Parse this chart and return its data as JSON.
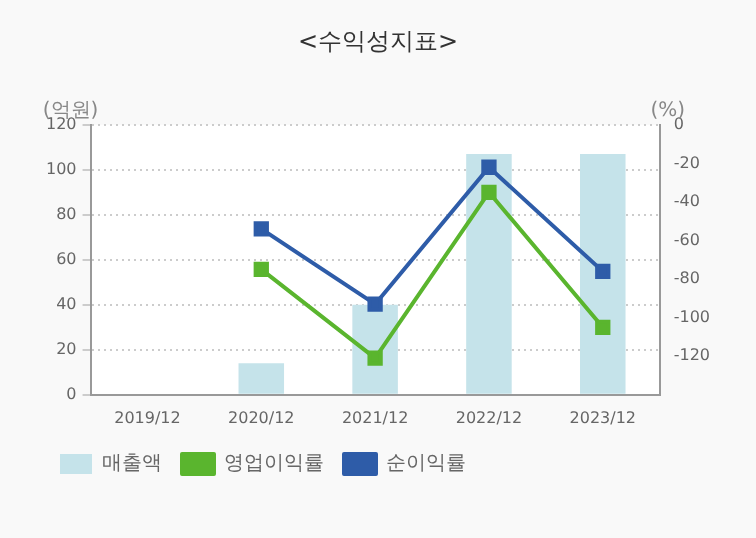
{
  "chart_data": {
    "type": "bar",
    "title": "<수익성지표>",
    "ylabel": "(억원)",
    "y2label": "(%)",
    "categories": [
      "2019/12",
      "2020/12",
      "2021/12",
      "2022/12",
      "2023/12"
    ],
    "series": [
      {
        "name": "매출액",
        "color": "#c5e3ea",
        "values": [
          null,
          14,
          40,
          107,
          107
        ]
      },
      {
        "name": "영업이익률",
        "type": "line",
        "axis": "y2",
        "color": "#5ab52e",
        "values": [
          null,
          -75,
          -121,
          -35,
          -105
        ]
      },
      {
        "name": "순이익률",
        "type": "line",
        "axis": "y2",
        "color": "#2e5ca8",
        "values": [
          null,
          -54,
          -93,
          -22,
          -76
        ]
      }
    ],
    "ylim": [
      0,
      120
    ],
    "yticks": [
      0,
      20,
      40,
      60,
      80,
      100,
      120
    ],
    "y2lim": [
      -140,
      0
    ],
    "y2ticks": [
      0,
      -20,
      -40,
      -60,
      -80,
      -100,
      -120
    ],
    "grid": "y",
    "legend": "bottom",
    "marker": "square",
    "line_style": "solid"
  }
}
